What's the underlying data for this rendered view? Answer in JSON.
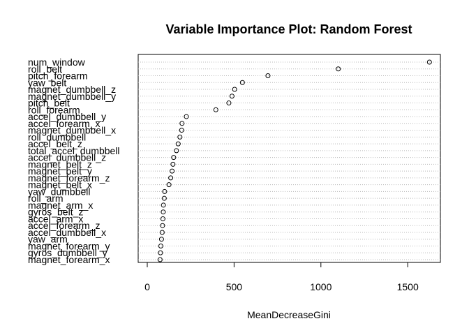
{
  "chart_data": {
    "type": "scatter",
    "title": "Variable Importance Plot: Random Forest",
    "xlabel": "MeanDecreaseGini",
    "ylabel": "",
    "xlim": [
      0,
      1700
    ],
    "xticks": [
      0,
      500,
      1000,
      1500
    ],
    "grid": "dotted horizontal per variable",
    "categories": [
      "num_window",
      "roll_belt",
      "pitch_forearm",
      "yaw_belt",
      "magnet_dumbbell_z",
      "magnet_dumbbell_y",
      "pitch_belt",
      "roll_forearm",
      "accel_dumbbell_y",
      "accel_forearm_x",
      "magnet_dumbbell_x",
      "roll_dumbbell",
      "accel_belt_z",
      "total_accel_dumbbell",
      "accel_dumbbell_z",
      "magnet_belt_z",
      "magnet_belt_y",
      "magnet_forearm_z",
      "magnet_belt_x",
      "yaw_dumbbell",
      "roll_arm",
      "magnet_arm_x",
      "gyros_belt_z",
      "accel_arm_x",
      "accel_forearm_z",
      "accel_dumbbell_x",
      "yaw_arm",
      "magnet_forearm_y",
      "gyros_dumbbell_y",
      "magnet_forearm_x"
    ],
    "values": [
      1625,
      1100,
      695,
      548,
      503,
      488,
      470,
      395,
      225,
      200,
      198,
      188,
      178,
      168,
      152,
      148,
      143,
      135,
      125,
      100,
      98,
      93,
      92,
      90,
      88,
      86,
      82,
      78,
      76,
      74
    ]
  }
}
